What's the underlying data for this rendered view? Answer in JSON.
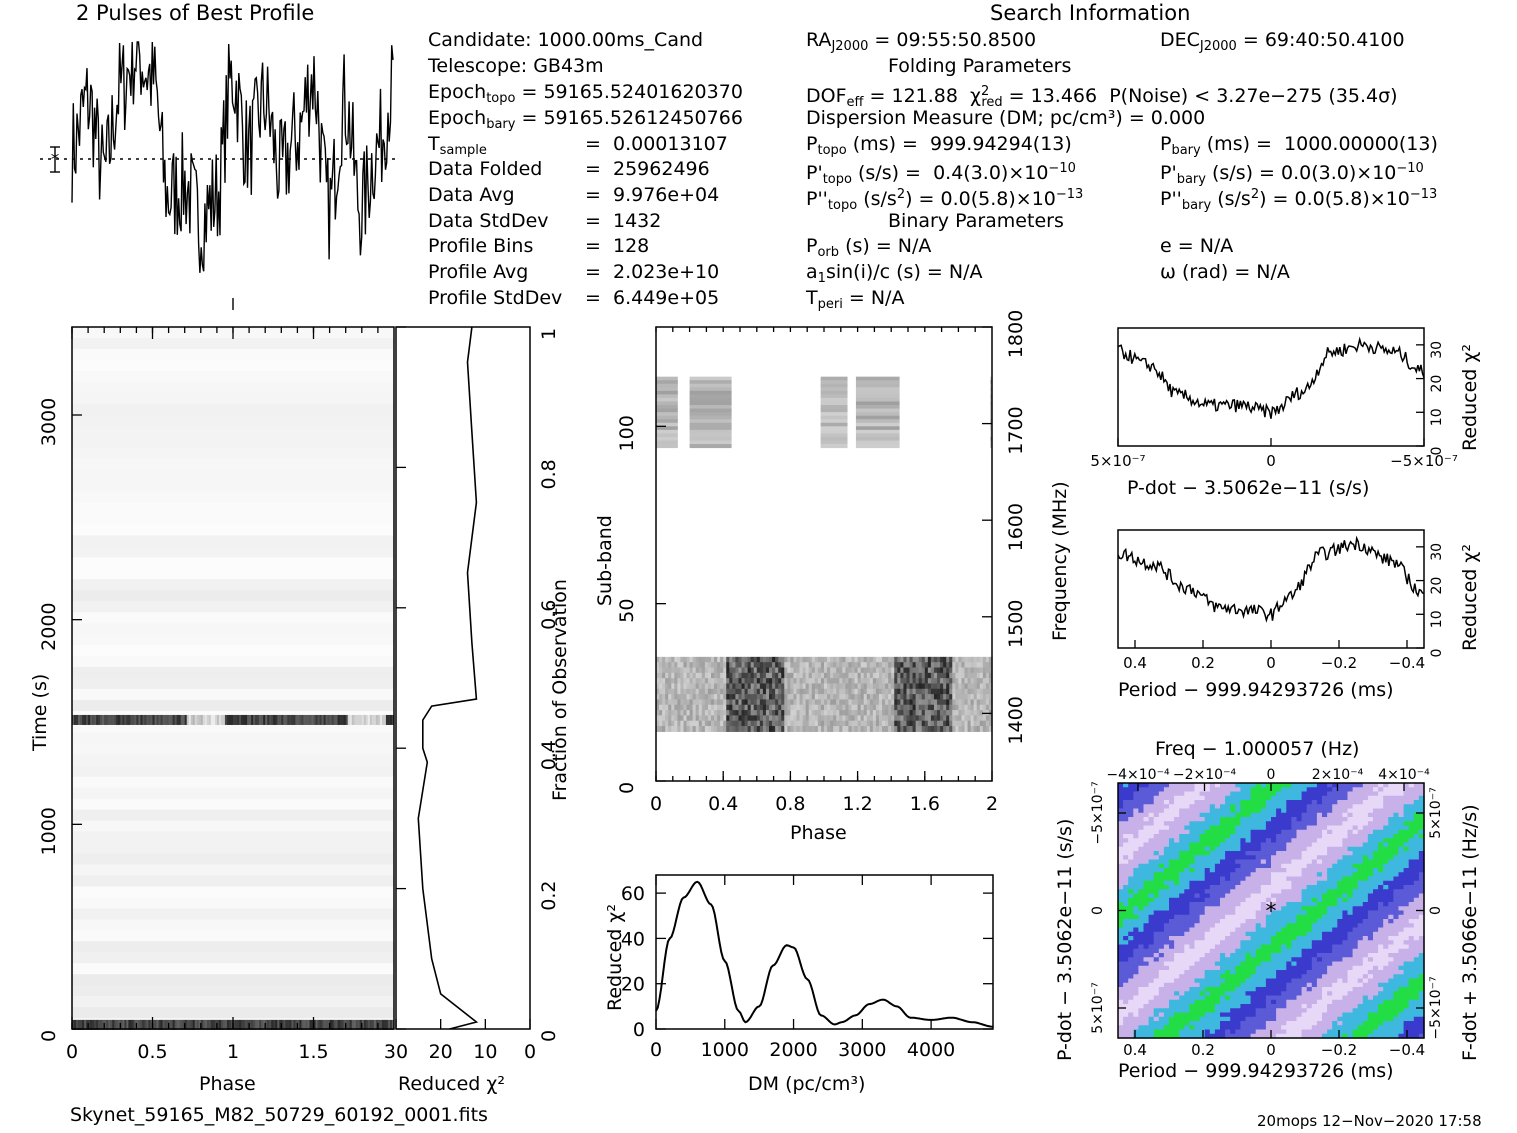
{
  "header": {
    "profile_title": "2 Pulses of Best Profile",
    "search_title": "Search Information",
    "folding_title": "Folding Parameters",
    "binary_title": "Binary Parameters"
  },
  "candidate": {
    "candidate": "Candidate:  1000.00ms_Cand",
    "telescope": "Telescope:  GB43m",
    "epoch_topo": "59165.52401620370",
    "epoch_bary": "59165.52612450766",
    "t_sample": "0.00013107",
    "data_folded": "25962496",
    "data_avg": "9.976e+04",
    "data_stddev": "1432",
    "profile_bins": "128",
    "profile_avg": "2.023e+10",
    "profile_stddev": "6.449e+05"
  },
  "search": {
    "ra": "09:55:50.8500",
    "dec": "69:40:50.4100",
    "dof_eff": "121.88",
    "chi2_red": "13.466",
    "p_noise": "P(Noise) < 3.27e−275  (35.4σ)",
    "dm": "Dispersion Measure (DM; pc/cm³) = 0.000",
    "p_topo": "999.94294(13)",
    "p_bary": "1000.00000(13)",
    "pd_topo": "0.4(3.0)×10",
    "pd_bary": "0.0(3.0)×10",
    "pdd_topo": "0.0(5.8)×10",
    "pdd_bary": "0.0(5.8)×10",
    "exp_pd": "−10",
    "exp_pdd": "−13",
    "p_orb": "N/A",
    "a1": "N/A",
    "t_peri": "N/A",
    "e": "e = N/A",
    "omega": "ω (rad) = N/A"
  },
  "axes": {
    "phase_label": "Phase",
    "time_label": "Time (s)",
    "redchi_label": "Reduced χ²",
    "fraction_label": "Fraction of Observation",
    "subband_label": "Sub-band",
    "freq_label": "Frequency (MHz)",
    "dm_label": "DM (pc/cm³)",
    "pdot_label": "P-dot − 3.5062e−11 (s/s)",
    "period_label": "Period − 999.94293726 (ms)",
    "freq_top_label": "Freq − 1.000057 (Hz)",
    "pdot_side_label": "P-dot − 3.5062e−11 (s/s)",
    "fdot_side_label": "F-dot + 3.5066e−11 (Hz/s)"
  },
  "footer": {
    "filename": "Skynet_59165_M82_50729_60192_0001.fits",
    "stamp": "20mops 12−Nov−2020 17:58"
  },
  "chart_data": [
    {
      "type": "line",
      "title": "2 Pulses of Best Profile",
      "xlabel": "",
      "ylabel": "",
      "xlim": [
        0,
        2
      ],
      "note_series": "pulse profile",
      "x": [
        0,
        0.1,
        0.2,
        0.3,
        0.4,
        0.5,
        0.6,
        0.7,
        0.8,
        0.9,
        1.0,
        1.1,
        1.2,
        1.3,
        1.4,
        1.5,
        1.6,
        1.7,
        1.8,
        1.9,
        2.0
      ],
      "y": [
        0.55,
        0.75,
        0.45,
        0.8,
        0.95,
        0.85,
        0.35,
        0.4,
        0.25,
        0.35,
        0.85,
        0.55,
        0.75,
        0.45,
        0.6,
        0.85,
        0.3,
        0.75,
        0.3,
        0.55,
        0.8
      ]
    },
    {
      "type": "heatmap",
      "xlabel": "Phase",
      "ylabel": "Time (s)",
      "xlim": [
        0,
        2
      ],
      "ylim": [
        0,
        3430
      ],
      "xticks": [
        0,
        0.5,
        1,
        1.5
      ],
      "yticks": [
        0,
        1000,
        2000,
        3000
      ],
      "bright_rows_time_s": [
        1510,
        20
      ]
    },
    {
      "type": "line",
      "xlabel": "Reduced χ²",
      "ylabel": "Fraction of Observation",
      "xlim": [
        30,
        0
      ],
      "ylim": [
        0,
        1
      ],
      "xticks": [
        30,
        20,
        10,
        0
      ],
      "yticks": [
        0,
        0.2,
        0.4,
        0.6,
        0.8,
        1
      ],
      "x": [
        18,
        12,
        20,
        22,
        24,
        25,
        23,
        24,
        24,
        22,
        12,
        13,
        14,
        12,
        13,
        14,
        13
      ],
      "y": [
        0,
        0.01,
        0.05,
        0.1,
        0.2,
        0.3,
        0.38,
        0.4,
        0.44,
        0.46,
        0.47,
        0.55,
        0.65,
        0.75,
        0.85,
        0.95,
        1
      ]
    },
    {
      "type": "heatmap",
      "xlabel": "Phase",
      "ylabel": "Sub-band",
      "xlim": [
        0,
        2
      ],
      "ylim": [
        0,
        128
      ],
      "xticks": [
        0,
        0.4,
        0.8,
        1.2,
        1.6,
        2
      ],
      "yticks": [
        0,
        50,
        100
      ],
      "right_axis": {
        "label": "Frequency (MHz)",
        "ticks": [
          1400,
          1500,
          1600,
          1700,
          1800
        ]
      },
      "bands": [
        {
          "sub_band_range": [
            94,
            114
          ],
          "phase_ranges": [
            [
              0,
              0.13
            ],
            [
              0.2,
              0.45
            ],
            [
              0.98,
              1.14
            ],
            [
              1.19,
              1.45
            ],
            [
              1.99,
              2.0
            ]
          ],
          "shade": "gray"
        },
        {
          "sub_band_range": [
            14,
            35
          ],
          "phase_ranges": [
            [
              0,
              2
            ]
          ],
          "shade": "dark-noise"
        }
      ]
    },
    {
      "type": "line",
      "xlabel": "DM (pc/cm³)",
      "ylabel": "Reduced χ²",
      "xlim": [
        0,
        4900
      ],
      "ylim": [
        0,
        68
      ],
      "xticks": [
        0,
        1000,
        2000,
        3000,
        4000
      ],
      "yticks": [
        0,
        20,
        40,
        60
      ],
      "x": [
        0,
        200,
        400,
        600,
        800,
        1000,
        1200,
        1300,
        1500,
        1700,
        1900,
        2000,
        2200,
        2400,
        2600,
        2700,
        2900,
        3100,
        3300,
        3500,
        3700,
        4000,
        4300,
        4600,
        4900
      ],
      "y": [
        8,
        40,
        58,
        65,
        55,
        30,
        8,
        3,
        10,
        28,
        37,
        36,
        22,
        6,
        2,
        3,
        6,
        11,
        13,
        10,
        5,
        4,
        5,
        3,
        1
      ]
    },
    {
      "type": "line",
      "xlabel": "P-dot − 3.5062e−11 (s/s)",
      "ylabel": "Reduced χ²",
      "xlim": [
        5e-07,
        -5e-07
      ],
      "ylim": [
        0,
        35
      ],
      "xticks": [
        "5×10⁻⁷",
        "0",
        "−5×10⁻⁷"
      ],
      "yticks": [
        0,
        10,
        20,
        30
      ],
      "x": [
        5e-07,
        4e-07,
        3e-07,
        2e-07,
        1e-07,
        0,
        -1e-07,
        -2e-07,
        -3e-07,
        -4e-07,
        -5e-07
      ],
      "y": [
        28,
        24,
        15,
        12,
        12,
        10,
        16,
        28,
        30,
        28,
        22
      ]
    },
    {
      "type": "line",
      "xlabel": "Period − 999.94293726 (ms)",
      "ylabel": "Reduced χ²",
      "xlim": [
        0.45,
        -0.45
      ],
      "ylim": [
        0,
        35
      ],
      "xticks": [
        0.4,
        0.2,
        0,
        -0.2,
        -0.4
      ],
      "yticks": [
        0,
        10,
        20,
        30
      ],
      "x": [
        0.45,
        0.35,
        0.25,
        0.15,
        0.05,
        0,
        -0.05,
        -0.15,
        -0.25,
        -0.35,
        -0.45
      ],
      "y": [
        28,
        25,
        18,
        12,
        11,
        10,
        15,
        28,
        31,
        26,
        16
      ]
    },
    {
      "type": "heatmap",
      "xlabel": "Period − 999.94293726 (ms)",
      "ylabel": "P-dot − 3.5062e−11 (s/s)",
      "xlim": [
        0.45,
        -0.45
      ],
      "ylim": [
        5e-07,
        -5e-07
      ],
      "xticks": [
        0.4,
        0.2,
        0,
        -0.2,
        -0.4
      ],
      "top_axis": {
        "label": "Freq − 1.000057 (Hz)",
        "ticks": [
          "−4×10⁻⁴",
          "−2×10⁻⁴",
          "0",
          "2×10⁻⁴",
          "4×10⁻⁴"
        ]
      },
      "right_axis": {
        "label": "F-dot + 3.5066e−11 (Hz/s)",
        "ticks": [
          "5×10⁻⁷",
          "0",
          "−5×10⁻⁷"
        ]
      },
      "colors": {
        "low": "#3a3acc",
        "mid": "#c8b0e8",
        "high": "#22dd44"
      },
      "best_marker": [
        0,
        0
      ]
    }
  ]
}
